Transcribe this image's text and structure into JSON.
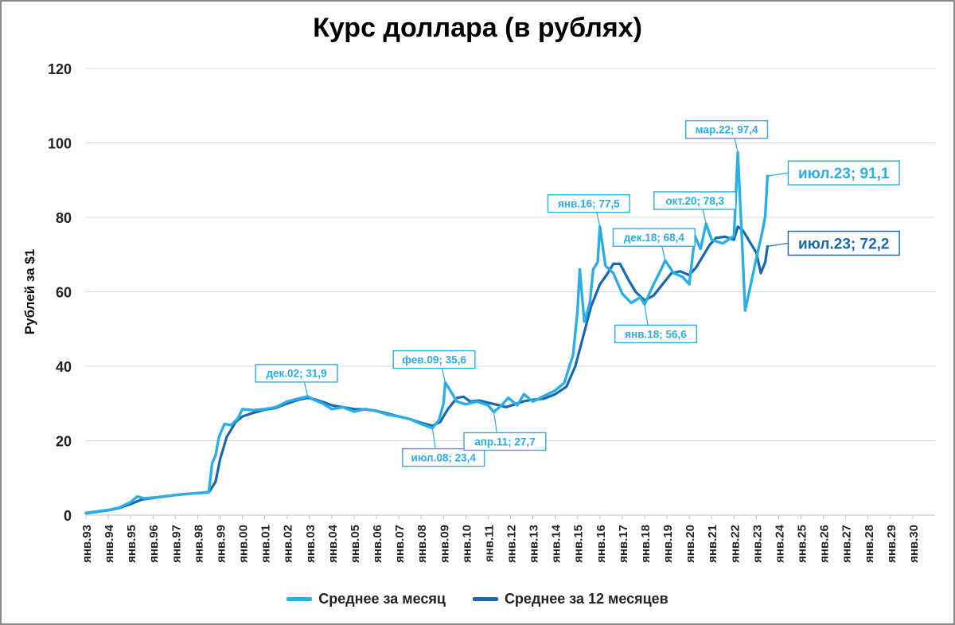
{
  "chart_data": {
    "type": "line",
    "title": "Курс доллара (в рублях)",
    "ylabel": "Рублей за $1",
    "xlabel": "",
    "ylim": [
      0,
      120
    ],
    "yticks": [
      0,
      20,
      40,
      60,
      80,
      100,
      120
    ],
    "grid": true,
    "legend_position": "bottom",
    "x_tick_labels": [
      "янв.93",
      "янв.94",
      "янв.95",
      "янв.96",
      "янв.97",
      "янв.98",
      "янв.99",
      "янв.00",
      "янв.01",
      "янв.02",
      "янв.03",
      "янв.04",
      "янв.05",
      "янв.06",
      "янв.07",
      "янв.08",
      "янв.09",
      "янв.10",
      "янв.11",
      "янв.12",
      "янв.13",
      "янв.14",
      "янв.15",
      "янв.16",
      "янв.17",
      "янв.18",
      "янв.19",
      "янв.20",
      "янв.21",
      "янв.22",
      "янв.23",
      "янв.24",
      "янв.25",
      "янв.26",
      "янв.27",
      "янв.28",
      "янв.29",
      "янв.30"
    ],
    "series": [
      {
        "name": "Среднее за месяц",
        "color": "#29aee6",
        "points": [
          [
            1993.0,
            0.6
          ],
          [
            1993.5,
            1.0
          ],
          [
            1994.0,
            1.4
          ],
          [
            1994.5,
            2.0
          ],
          [
            1995.0,
            3.5
          ],
          [
            1995.3,
            5.0
          ],
          [
            1995.6,
            4.5
          ],
          [
            1996.0,
            4.7
          ],
          [
            1996.5,
            5.0
          ],
          [
            1997.0,
            5.4
          ],
          [
            1997.5,
            5.7
          ],
          [
            1998.0,
            5.9
          ],
          [
            1998.5,
            6.2
          ],
          [
            1998.65,
            14.0
          ],
          [
            1998.8,
            16.0
          ],
          [
            1998.95,
            21.0
          ],
          [
            1999.2,
            24.5
          ],
          [
            1999.5,
            24.2
          ],
          [
            1999.8,
            26.0
          ],
          [
            2000.0,
            28.5
          ],
          [
            2000.5,
            28.2
          ],
          [
            2001.0,
            28.5
          ],
          [
            2001.5,
            29.0
          ],
          [
            2002.0,
            30.5
          ],
          [
            2002.5,
            31.3
          ],
          [
            2002.92,
            31.9
          ],
          [
            2003.2,
            31.0
          ],
          [
            2003.6,
            30.0
          ],
          [
            2004.0,
            28.5
          ],
          [
            2004.5,
            29.0
          ],
          [
            2005.0,
            27.8
          ],
          [
            2005.5,
            28.5
          ],
          [
            2006.0,
            28.0
          ],
          [
            2006.5,
            27.0
          ],
          [
            2007.0,
            26.5
          ],
          [
            2007.5,
            25.8
          ],
          [
            2008.0,
            24.5
          ],
          [
            2008.5,
            23.4
          ],
          [
            2008.8,
            25.5
          ],
          [
            2009.0,
            30.0
          ],
          [
            2009.08,
            35.6
          ],
          [
            2009.3,
            33.5
          ],
          [
            2009.6,
            30.5
          ],
          [
            2010.0,
            29.8
          ],
          [
            2010.5,
            30.5
          ],
          [
            2011.0,
            29.5
          ],
          [
            2011.25,
            27.7
          ],
          [
            2011.6,
            29.5
          ],
          [
            2011.9,
            31.5
          ],
          [
            2012.3,
            29.5
          ],
          [
            2012.6,
            32.5
          ],
          [
            2013.0,
            30.5
          ],
          [
            2013.5,
            32.0
          ],
          [
            2014.0,
            33.5
          ],
          [
            2014.4,
            35.5
          ],
          [
            2014.8,
            43.0
          ],
          [
            2015.0,
            55.0
          ],
          [
            2015.1,
            66.0
          ],
          [
            2015.3,
            52.0
          ],
          [
            2015.55,
            57.0
          ],
          [
            2015.7,
            66.0
          ],
          [
            2015.9,
            68.0
          ],
          [
            2016.0,
            77.5
          ],
          [
            2016.25,
            67.0
          ],
          [
            2016.6,
            65.0
          ],
          [
            2017.0,
            59.5
          ],
          [
            2017.4,
            57.0
          ],
          [
            2017.8,
            58.5
          ],
          [
            2018.0,
            56.6
          ],
          [
            2018.4,
            62.0
          ],
          [
            2018.7,
            65.5
          ],
          [
            2018.92,
            68.4
          ],
          [
            2019.3,
            65.0
          ],
          [
            2019.7,
            64.0
          ],
          [
            2020.0,
            62.0
          ],
          [
            2020.25,
            75.0
          ],
          [
            2020.5,
            71.5
          ],
          [
            2020.75,
            78.3
          ],
          [
            2021.0,
            74.0
          ],
          [
            2021.5,
            73.0
          ],
          [
            2022.0,
            75.0
          ],
          [
            2022.17,
            97.4
          ],
          [
            2022.35,
            75.0
          ],
          [
            2022.5,
            55.0
          ],
          [
            2022.7,
            60.5
          ],
          [
            2023.0,
            69.0
          ],
          [
            2023.3,
            77.0
          ],
          [
            2023.4,
            80.5
          ],
          [
            2023.5,
            91.1
          ]
        ]
      },
      {
        "name": "Среднее за 12 месяцев",
        "color": "#1768ac",
        "points": [
          [
            1993.0,
            0.5
          ],
          [
            1994.0,
            1.3
          ],
          [
            1994.5,
            1.9
          ],
          [
            1995.0,
            3.0
          ],
          [
            1995.5,
            4.2
          ],
          [
            1996.0,
            4.6
          ],
          [
            1996.5,
            5.0
          ],
          [
            1997.0,
            5.4
          ],
          [
            1997.5,
            5.7
          ],
          [
            1998.0,
            5.9
          ],
          [
            1998.5,
            6.1
          ],
          [
            1998.8,
            9.0
          ],
          [
            1999.0,
            15.0
          ],
          [
            1999.3,
            21.0
          ],
          [
            1999.7,
            25.0
          ],
          [
            2000.0,
            26.5
          ],
          [
            2000.5,
            27.5
          ],
          [
            2001.0,
            28.3
          ],
          [
            2001.5,
            28.8
          ],
          [
            2002.0,
            30.0
          ],
          [
            2002.5,
            31.0
          ],
          [
            2002.92,
            31.5
          ],
          [
            2003.3,
            31.0
          ],
          [
            2003.7,
            30.2
          ],
          [
            2004.0,
            29.5
          ],
          [
            2004.5,
            29.0
          ],
          [
            2005.0,
            28.5
          ],
          [
            2005.5,
            28.4
          ],
          [
            2006.0,
            28.0
          ],
          [
            2006.5,
            27.3
          ],
          [
            2007.0,
            26.5
          ],
          [
            2007.5,
            25.8
          ],
          [
            2008.0,
            24.8
          ],
          [
            2008.5,
            24.0
          ],
          [
            2008.85,
            25.0
          ],
          [
            2009.2,
            28.5
          ],
          [
            2009.6,
            31.5
          ],
          [
            2009.9,
            31.8
          ],
          [
            2010.2,
            30.5
          ],
          [
            2010.6,
            30.8
          ],
          [
            2011.0,
            30.2
          ],
          [
            2011.5,
            29.5
          ],
          [
            2011.8,
            29.0
          ],
          [
            2012.2,
            29.8
          ],
          [
            2012.6,
            30.6
          ],
          [
            2013.0,
            31.0
          ],
          [
            2013.5,
            31.3
          ],
          [
            2014.0,
            32.5
          ],
          [
            2014.5,
            34.5
          ],
          [
            2014.9,
            40.0
          ],
          [
            2015.25,
            48.0
          ],
          [
            2015.6,
            56.0
          ],
          [
            2016.0,
            62.0
          ],
          [
            2016.3,
            64.5
          ],
          [
            2016.6,
            67.5
          ],
          [
            2016.9,
            67.5
          ],
          [
            2017.3,
            63.0
          ],
          [
            2017.6,
            60.0
          ],
          [
            2018.0,
            57.7
          ],
          [
            2018.4,
            59.0
          ],
          [
            2018.8,
            62.0
          ],
          [
            2019.2,
            65.0
          ],
          [
            2019.6,
            65.5
          ],
          [
            2020.0,
            64.5
          ],
          [
            2020.3,
            66.5
          ],
          [
            2020.6,
            69.5
          ],
          [
            2020.9,
            72.5
          ],
          [
            2021.2,
            74.5
          ],
          [
            2021.6,
            74.8
          ],
          [
            2022.0,
            74.0
          ],
          [
            2022.17,
            77.5
          ],
          [
            2022.4,
            76.5
          ],
          [
            2022.7,
            73.5
          ],
          [
            2023.0,
            70.5
          ],
          [
            2023.2,
            65.0
          ],
          [
            2023.4,
            68.0
          ],
          [
            2023.5,
            72.2
          ]
        ]
      }
    ],
    "annotations": [
      {
        "text": "дек.02; 31,9",
        "series": 0,
        "x": 2002.92,
        "y": 31.9,
        "side": "above",
        "box": "medium"
      },
      {
        "text": "июл.08; 23,4",
        "series": 0,
        "x": 2008.5,
        "y": 23.4,
        "side": "below",
        "box": "medium"
      },
      {
        "text": "фев.09; 35,6",
        "series": 0,
        "x": 2009.08,
        "y": 35.6,
        "side": "above",
        "box": "medium"
      },
      {
        "text": "апр.11; 27,7",
        "series": 0,
        "x": 2011.25,
        "y": 27.7,
        "side": "below",
        "box": "medium"
      },
      {
        "text": "янв.16; 77,5",
        "series": 0,
        "x": 2016.0,
        "y": 77.5,
        "side": "above",
        "box": "medium"
      },
      {
        "text": "янв.18; 56,6",
        "series": 0,
        "x": 2018.0,
        "y": 56.6,
        "side": "below",
        "box": "medium"
      },
      {
        "text": "дек.18; 68,4",
        "series": 0,
        "x": 2018.92,
        "y": 68.4,
        "side": "above",
        "box": "medium"
      },
      {
        "text": "окт.20; 78,3",
        "series": 0,
        "x": 2020.75,
        "y": 78.3,
        "side": "above",
        "box": "medium"
      },
      {
        "text": "мар.22; 97,4",
        "series": 0,
        "x": 2022.17,
        "y": 97.4,
        "side": "above",
        "box": "medium"
      },
      {
        "text": "июл.23; 91,1",
        "series": 0,
        "x": 2023.5,
        "y": 91.1,
        "side": "right",
        "box": "large"
      },
      {
        "text": "июл.23; 72,2",
        "series": 1,
        "x": 2023.5,
        "y": 72.2,
        "side": "right",
        "box": "large"
      }
    ]
  }
}
